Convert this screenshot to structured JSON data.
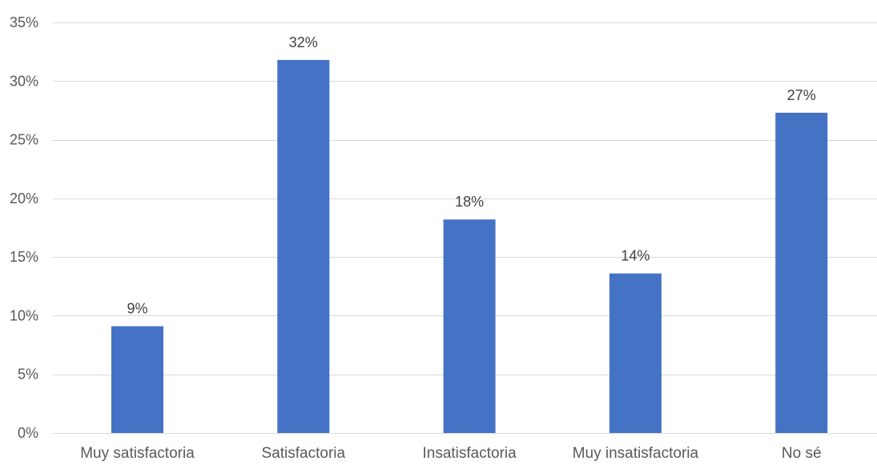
{
  "chart_data": {
    "type": "bar",
    "title": "",
    "xlabel": "",
    "ylabel": "",
    "categories": [
      "Muy satisfactoria",
      "Satisfactoria",
      "Insatisfactoria",
      "Muy insatisfactoria",
      "No sé"
    ],
    "values": [
      9.1,
      31.8,
      18.2,
      13.6,
      27.3
    ],
    "data_labels": [
      "9%",
      "32%",
      "18%",
      "14%",
      "27%"
    ],
    "ylim": [
      0,
      35
    ],
    "yticks": [
      0,
      5,
      10,
      15,
      20,
      25,
      30,
      35
    ],
    "ytick_labels": [
      "0%",
      "5%",
      "10%",
      "15%",
      "20%",
      "25%",
      "30%",
      "35%"
    ],
    "grid": true,
    "legend": "none",
    "colors": {
      "bar": "#4472C4",
      "grid": "#D9D9D9",
      "axis_text": "#595959"
    }
  }
}
